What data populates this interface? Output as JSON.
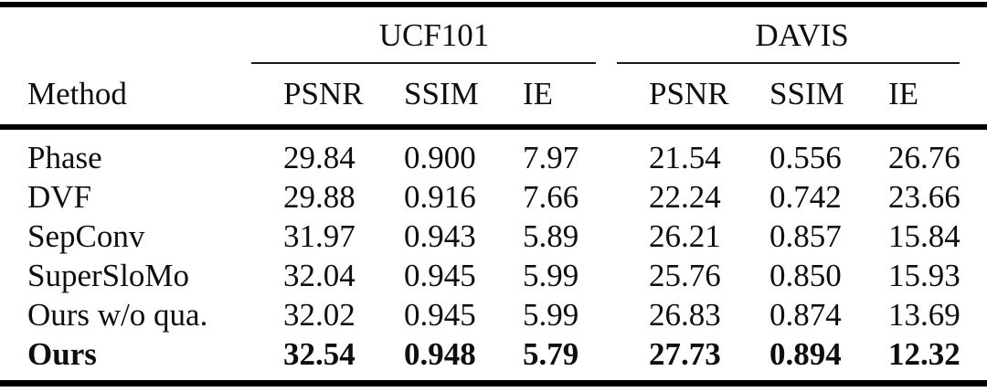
{
  "chart_data": {
    "type": "table",
    "method_column_header": "Method",
    "column_groups": [
      {
        "label": "UCF101",
        "metrics": [
          "PSNR",
          "SSIM",
          "IE"
        ]
      },
      {
        "label": "DAVIS",
        "metrics": [
          "PSNR",
          "SSIM",
          "IE"
        ]
      }
    ],
    "rows": [
      {
        "method": "Phase",
        "ucf101": {
          "psnr": "29.84",
          "ssim": "0.900",
          "ie": "7.97"
        },
        "davis": {
          "psnr": "21.54",
          "ssim": "0.556",
          "ie": "26.76"
        },
        "bold": false
      },
      {
        "method": "DVF",
        "ucf101": {
          "psnr": "29.88",
          "ssim": "0.916",
          "ie": "7.66"
        },
        "davis": {
          "psnr": "22.24",
          "ssim": "0.742",
          "ie": "23.66"
        },
        "bold": false
      },
      {
        "method": "SepConv",
        "ucf101": {
          "psnr": "31.97",
          "ssim": "0.943",
          "ie": "5.89"
        },
        "davis": {
          "psnr": "26.21",
          "ssim": "0.857",
          "ie": "15.84"
        },
        "bold": false
      },
      {
        "method": "SuperSloMo",
        "ucf101": {
          "psnr": "32.04",
          "ssim": "0.945",
          "ie": "5.99"
        },
        "davis": {
          "psnr": "25.76",
          "ssim": "0.850",
          "ie": "15.93"
        },
        "bold": false
      },
      {
        "method": "Ours w/o qua.",
        "ucf101": {
          "psnr": "32.02",
          "ssim": "0.945",
          "ie": "5.99"
        },
        "davis": {
          "psnr": "26.83",
          "ssim": "0.874",
          "ie": "13.69"
        },
        "bold": false
      },
      {
        "method": "Ours",
        "ucf101": {
          "psnr": "32.54",
          "ssim": "0.948",
          "ie": "5.79"
        },
        "davis": {
          "psnr": "27.73",
          "ssim": "0.894",
          "ie": "12.32"
        },
        "bold": true
      }
    ],
    "colors": {
      "text": "#0e0e0e",
      "rule": "#000000",
      "background": "#ffffff"
    }
  }
}
